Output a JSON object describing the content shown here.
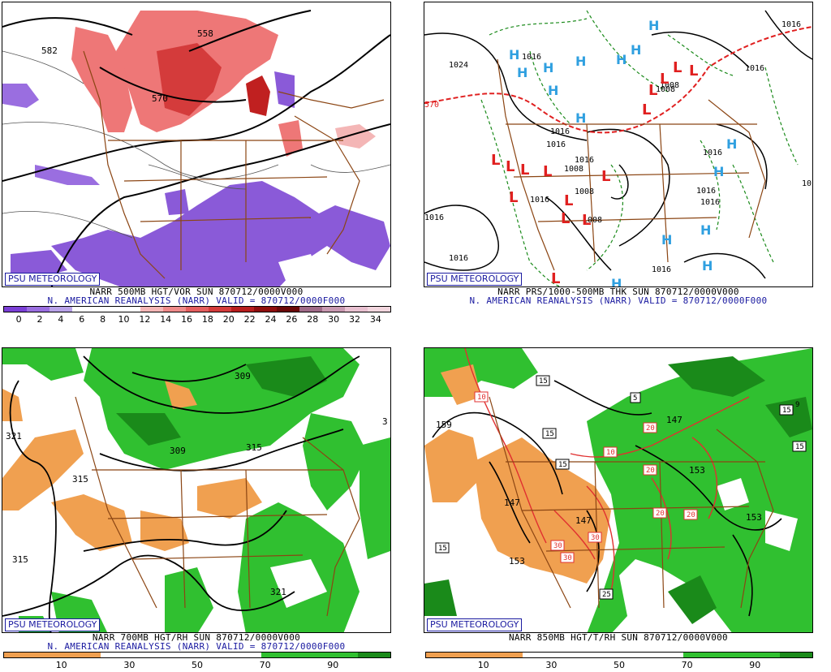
{
  "credit_label": "PSU METEOROLOGY",
  "panels": [
    {
      "id": "vort500",
      "title_line1": "NARR 500MB HGT/VOR SUN 870712/0000V000",
      "title_line2": "N. AMERICAN REANALYSIS (NARR) VALID = 870712/0000F000",
      "colorbar_colors": [
        "#7b3fd6",
        "#9a6ee0",
        "#b8a2e8",
        "#ffffff",
        "#ffffff",
        "#ffffff",
        "#f4b6b6",
        "#ee8a8a",
        "#e45e5e",
        "#d43b3b",
        "#b81e1e",
        "#8f0e0e",
        "#6a0808",
        "#a06a88",
        "#c898b0",
        "#e8c0d0",
        "#f2d6de"
      ],
      "colorbar_labels": [
        "0",
        "2",
        "4",
        "6",
        "8",
        "10",
        "12",
        "14",
        "16",
        "18",
        "20",
        "22",
        "24",
        "26",
        "28",
        "30",
        "32",
        "34"
      ],
      "contour_labels": [
        "582",
        "558",
        "570"
      ]
    },
    {
      "id": "prs_thk",
      "title_line1": "NARR PRS/1000-500MB THK SUN 870712/0000V000",
      "title_line2": "N. AMERICAN REANALYSIS (NARR) VALID = 870712/0000F000",
      "contour_labels": [
        "1024",
        "1016",
        "1016",
        "1008",
        "1016",
        "1016",
        "1016",
        "1016",
        "1016",
        "1016",
        "1008",
        "1008",
        "1008",
        "1016",
        "1016",
        "1016",
        "1016",
        "1008",
        "1016",
        "570",
        "10"
      ],
      "high_letter": "H",
      "low_letter": "L"
    },
    {
      "id": "rh700",
      "title_line1": "NARR 700MB HGT/RH SUN 870712/0000V000",
      "title_line2": "N. AMERICAN REANALYSIS (NARR) VALID = 870712/0000F000",
      "colorbar_colors": [
        "#f0a050",
        "#f0a050",
        "#f0a050",
        "#ffffff",
        "#ffffff",
        "#ffffff",
        "#ffffff",
        "#ffffff",
        "#30c030",
        "#30c030",
        "#30c030",
        "#1a8a1a"
      ],
      "colorbar_labels": [
        "10",
        "30",
        "50",
        "70",
        "90"
      ],
      "contour_labels": [
        "321",
        "315",
        "309",
        "309",
        "315",
        "315",
        "321",
        "3"
      ]
    },
    {
      "id": "rh850",
      "title_line1": "NARR 850MB HGT/T/RH SUN 870712/0000V000",
      "colorbar_colors": [
        "#f0a050",
        "#f0a050",
        "#f0a050",
        "#ffffff",
        "#ffffff",
        "#ffffff",
        "#ffffff",
        "#ffffff",
        "#30c030",
        "#30c030",
        "#30c030",
        "#1a8a1a"
      ],
      "colorbar_labels": [
        "10",
        "30",
        "50",
        "70",
        "90"
      ],
      "contour_labels": [
        "159",
        "147",
        "147",
        "153",
        "153",
        "147",
        "153"
      ],
      "box_labels": [
        "10",
        "15",
        "15",
        "15",
        "10",
        "5",
        "20",
        "20",
        "20",
        "20",
        "30",
        "30",
        "30",
        "15",
        "25",
        "15",
        "15",
        "9"
      ]
    }
  ]
}
